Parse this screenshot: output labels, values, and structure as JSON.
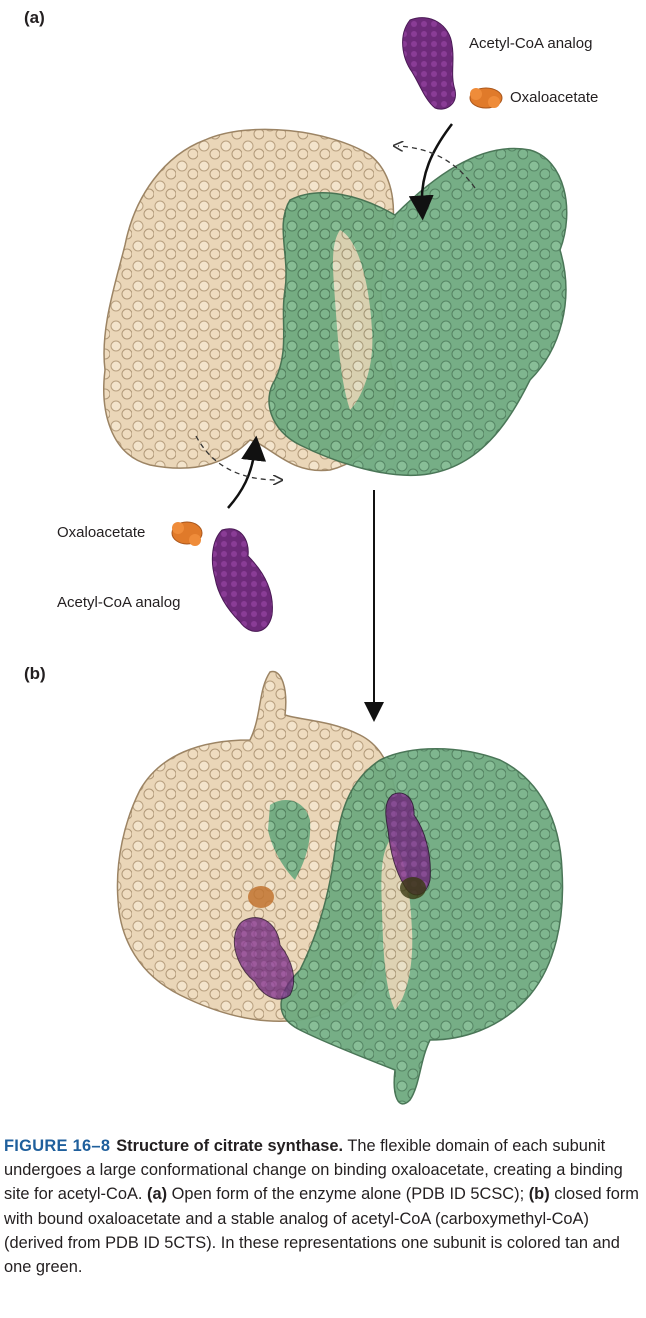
{
  "panels": {
    "a": {
      "label": "(a)"
    },
    "b": {
      "label": "(b)"
    }
  },
  "labels": {
    "top_acetyl": "Acetyl-CoA analog",
    "top_oxalo": "Oxaloacetate",
    "left_oxalo": "Oxaloacetate",
    "left_acetyl": "Acetyl-CoA analog"
  },
  "caption": {
    "number": "FIGURE 16–8",
    "title": "Structure of citrate synthase.",
    "text1": " The flexible domain of each subunit undergoes a large conformational change on binding oxaloacetate, creating a binding site for acetyl-CoA. ",
    "a_label": "(a)",
    "text2": " Open form of the enzyme alone (PDB ID 5CSC); ",
    "b_label": "(b)",
    "text3": " closed form with bound oxaloacetate and a stable analog of acetyl-CoA (carboxymethyl-CoA) (derived from PDB ID 5CTS). In these representations one subunit is colored tan and one green."
  },
  "colors": {
    "tan_subunit": "#ead6b8",
    "green_subunit": "#6faa80",
    "acetyl_coa": "#6e2a7a",
    "oxaloacetate": "#e07a2a",
    "caption_number": "#1f5f9c"
  }
}
